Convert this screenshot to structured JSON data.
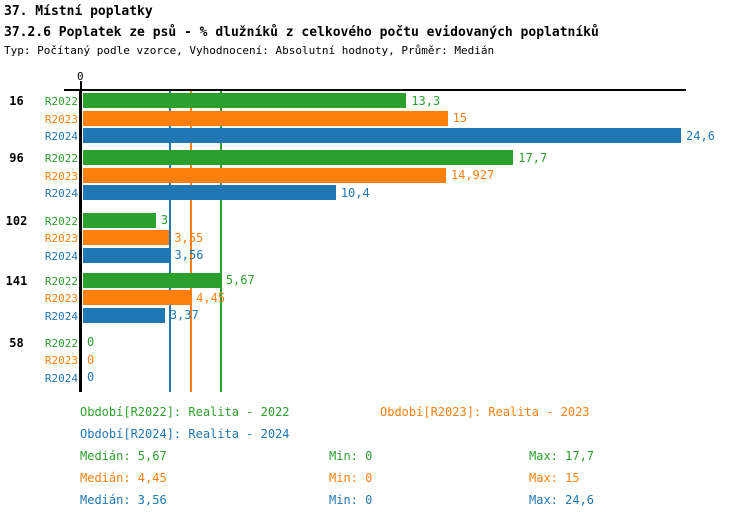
{
  "header": {
    "title": "37. Místní poplatky",
    "subtitle": "37.2.6 Poplatek ze psů - % dlužníků z celkového počtu evidovaných poplatníků",
    "meta": "Typ: Počítaný podle vzorce, Vyhodnocení: Absolutní hodnoty, Průměr: Medián"
  },
  "colors": {
    "r2022": "#2ca02c",
    "r2023": "#ff7f0e",
    "r2024": "#1f77b4",
    "axis": "#000000"
  },
  "chart_data": {
    "type": "bar",
    "orientation": "horizontal",
    "axis_zero_label": "0",
    "series_labels": [
      "R2022",
      "R2023",
      "R2024"
    ],
    "series_keys": [
      "r2022",
      "r2023",
      "r2024"
    ],
    "categories": [
      "16",
      "96",
      "102",
      "141",
      "58"
    ],
    "groups": [
      {
        "label": "16",
        "values": [
          13.3,
          15,
          24.6
        ],
        "display": [
          "13,3",
          "15",
          "24,6"
        ]
      },
      {
        "label": "96",
        "values": [
          17.7,
          14.927,
          10.4
        ],
        "display": [
          "17,7",
          "14,927",
          "10,4"
        ]
      },
      {
        "label": "102",
        "values": [
          3,
          3.55,
          3.56
        ],
        "display": [
          "3",
          "3,55",
          "3,56"
        ]
      },
      {
        "label": "141",
        "values": [
          5.67,
          4.45,
          3.37
        ],
        "display": [
          "5,67",
          "4,45",
          "3,37"
        ]
      },
      {
        "label": "58",
        "values": [
          0,
          0,
          0
        ],
        "display": [
          "0",
          "0",
          "0"
        ]
      }
    ],
    "median_lines": [
      {
        "series": "r2024",
        "value": 3.56
      },
      {
        "series": "r2023",
        "value": 4.45
      },
      {
        "series": "r2022",
        "value": 5.67
      }
    ],
    "xlim": [
      0,
      24.6
    ],
    "grid": false,
    "legend_position": "bottom"
  },
  "legend": {
    "items": [
      {
        "label": "Období[R2022]: Realita - 2022",
        "series": "r2022"
      },
      {
        "label": "Období[R2023]: Realita - 2023",
        "series": "r2023"
      },
      {
        "label": "Období[R2024]: Realita - 2024",
        "series": "r2024"
      }
    ],
    "stats": [
      {
        "series": "r2022",
        "median": "Medián: 5,67",
        "min": "Min: 0",
        "max": "Max: 17,7"
      },
      {
        "series": "r2023",
        "median": "Medián: 4,45",
        "min": "Min: 0",
        "max": "Max: 15"
      },
      {
        "series": "r2024",
        "median": "Medián: 3,56",
        "min": "Min: 0",
        "max": "Max: 24,6"
      }
    ]
  }
}
